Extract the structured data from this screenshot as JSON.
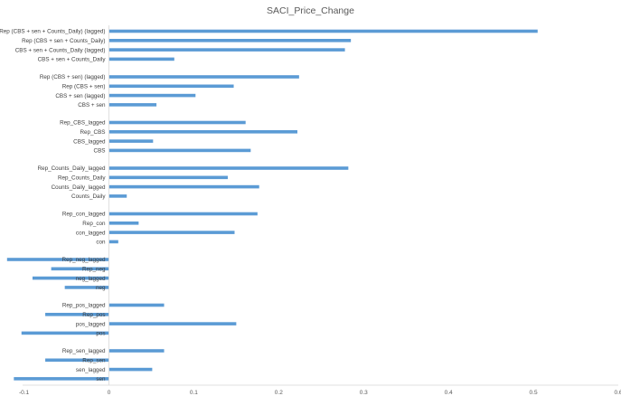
{
  "chart_data": {
    "type": "bar",
    "orientation": "horizontal",
    "title": "SACI_Price_Change",
    "xlabel": "",
    "ylabel": "",
    "xlim": [
      -0.1,
      0.6
    ],
    "x_ticks": [
      "-0.1",
      "0",
      "0.1",
      "0.2",
      "0.3",
      "0.4",
      "0.5",
      "0.6"
    ],
    "grid": false,
    "bar_color": "#5b9bd5",
    "groups": [
      {
        "items": [
          {
            "label": "Rep (CBS + sen + Counts_Daily) (lagged)",
            "value": 0.505
          },
          {
            "label": "Rep (CBS + sen + Counts_Daily)",
            "value": 0.285
          },
          {
            "label": "CBS + sen + Counts_Daily (lagged)",
            "value": 0.278
          },
          {
            "label": "CBS + sen + Counts_Daily",
            "value": 0.077
          }
        ]
      },
      {
        "items": [
          {
            "label": "Rep (CBS + sen) (lagged)",
            "value": 0.224
          },
          {
            "label": "Rep (CBS + sen)",
            "value": 0.147
          },
          {
            "label": "CBS + sen (lagged)",
            "value": 0.102
          },
          {
            "label": "CBS + sen",
            "value": 0.056
          }
        ]
      },
      {
        "items": [
          {
            "label": "Rep_CBS_lagged",
            "value": 0.161
          },
          {
            "label": "Rep_CBS",
            "value": 0.222
          },
          {
            "label": "CBS_lagged",
            "value": 0.052
          },
          {
            "label": "CBS",
            "value": 0.167
          }
        ]
      },
      {
        "items": [
          {
            "label": "Rep_Counts_Daily_lagged",
            "value": 0.282
          },
          {
            "label": "Rep_Counts_Daily",
            "value": 0.14
          },
          {
            "label": "Counts_Daily_lagged",
            "value": 0.177
          },
          {
            "label": "Counts_Daily",
            "value": 0.021
          }
        ]
      },
      {
        "items": [
          {
            "label": "Rep_con_lagged",
            "value": 0.175
          },
          {
            "label": "Rep_con",
            "value": 0.035
          },
          {
            "label": "con_lagged",
            "value": 0.148
          },
          {
            "label": "con",
            "value": 0.011
          }
        ]
      },
      {
        "items": [
          {
            "label": "Rep_neg_lagged",
            "value": -0.12
          },
          {
            "label": "Rep_neg",
            "value": -0.068
          },
          {
            "label": "neg_lagged",
            "value": -0.09
          },
          {
            "label": "neg",
            "value": -0.052
          }
        ]
      },
      {
        "items": [
          {
            "label": "Rep_pos_lagged",
            "value": 0.065
          },
          {
            "label": "Rep_pos",
            "value": -0.075
          },
          {
            "label": "pos_lagged",
            "value": 0.15
          },
          {
            "label": "pos",
            "value": -0.103
          }
        ]
      },
      {
        "items": [
          {
            "label": "Rep_sen_lagged",
            "value": 0.065
          },
          {
            "label": "Rep_sen",
            "value": -0.075
          },
          {
            "label": "sen_lagged",
            "value": 0.051
          },
          {
            "label": "sen",
            "value": -0.112
          }
        ]
      }
    ]
  }
}
